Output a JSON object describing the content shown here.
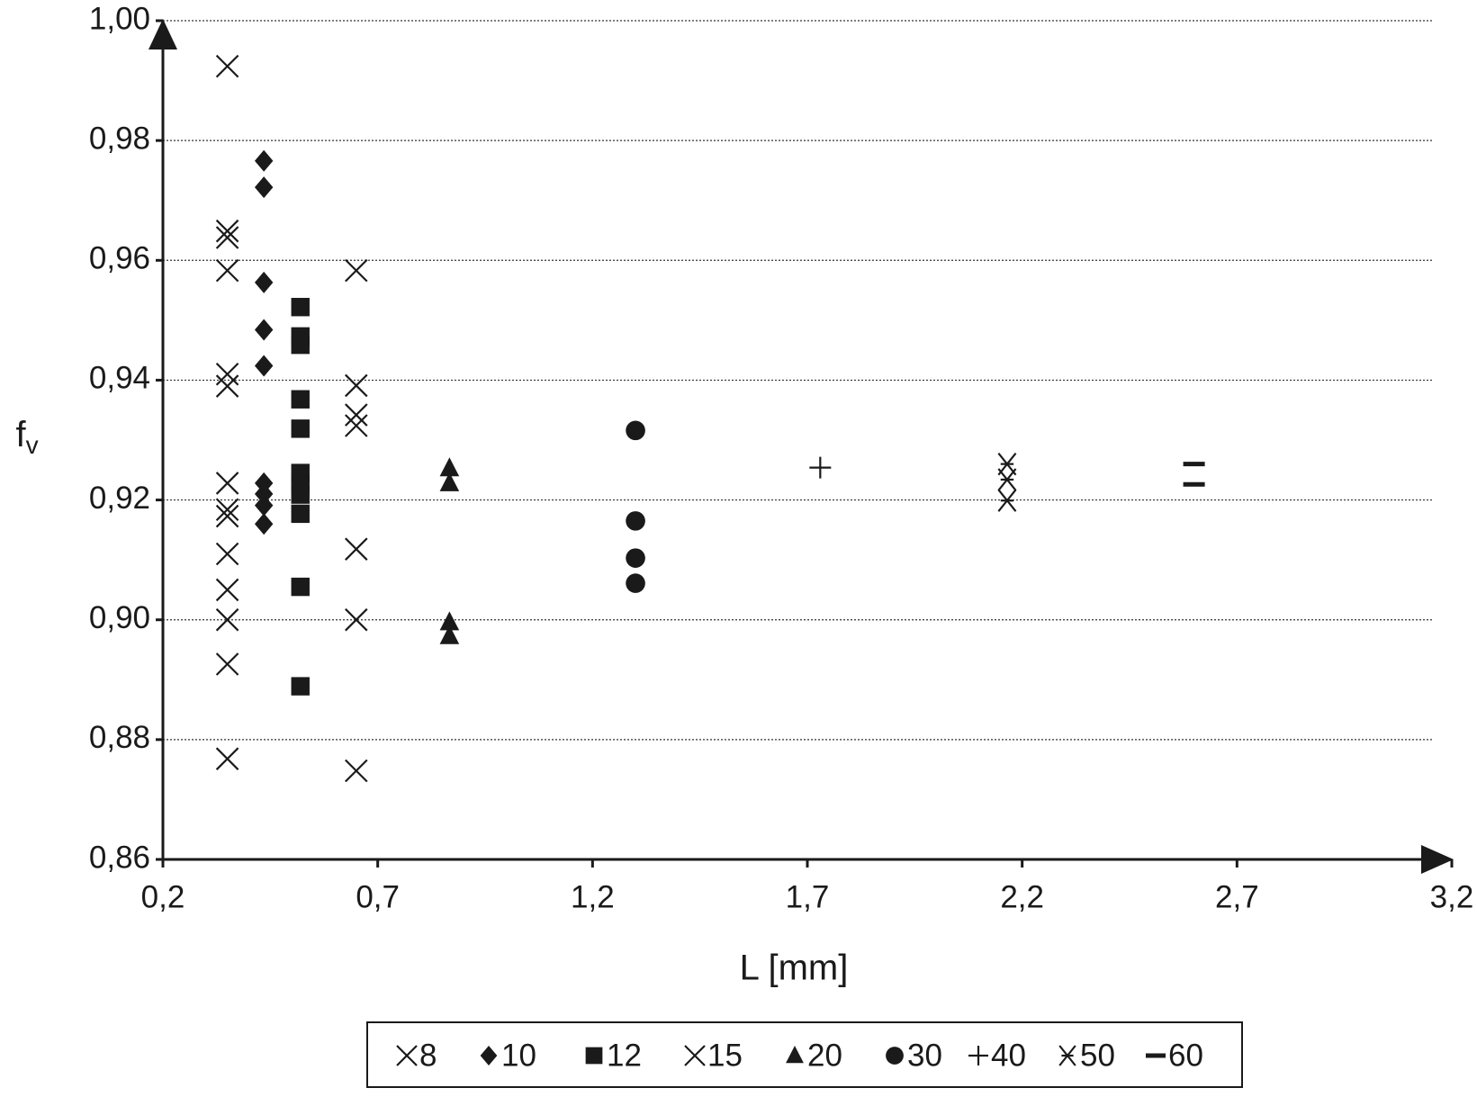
{
  "chart_data": {
    "type": "scatter",
    "x_label": "L [mm]",
    "y_label": "f",
    "y_label_subscript": "v",
    "xlim": [
      0.2,
      3.2
    ],
    "xticks": [
      {
        "value": 0.2,
        "label": "0,2"
      },
      {
        "value": 0.7,
        "label": "0,7"
      },
      {
        "value": 1.2,
        "label": "1,2"
      },
      {
        "value": 1.7,
        "label": "1,7"
      },
      {
        "value": 2.2,
        "label": "2,2"
      },
      {
        "value": 2.7,
        "label": "2,7"
      },
      {
        "value": 3.2,
        "label": "3,2"
      }
    ],
    "ylim": [
      0.86,
      1.0
    ],
    "yticks": [
      {
        "value": 0.86,
        "label": "0,86"
      },
      {
        "value": 0.88,
        "label": "0,88"
      },
      {
        "value": 0.9,
        "label": "0,90"
      },
      {
        "value": 0.92,
        "label": "0,92"
      },
      {
        "value": 0.94,
        "label": "0,94"
      },
      {
        "value": 0.96,
        "label": "0,96"
      },
      {
        "value": 0.98,
        "label": "0,98"
      },
      {
        "value": 1.0,
        "label": "1,00"
      }
    ],
    "grid": true,
    "legend": "bottom",
    "series": [
      {
        "name": "8",
        "color": "#1a1a1a",
        "marker": "x",
        "x": [
          0.35,
          0.35,
          0.35,
          0.35,
          0.35,
          0.35,
          0.35,
          0.35,
          0.35,
          0.35,
          0.35,
          0.35,
          0.35,
          0.35
        ],
        "values": [
          0.9924,
          0.9649,
          0.9638,
          0.9583,
          0.941,
          0.939,
          0.9228,
          0.9184,
          0.9173,
          0.911,
          0.905,
          0.9,
          0.8926,
          0.8768
        ]
      },
      {
        "name": "10",
        "color": "#1a1a1a",
        "marker": "diamond",
        "x": [
          0.435,
          0.435,
          0.435,
          0.435,
          0.435,
          0.435,
          0.435,
          0.435,
          0.435
        ],
        "values": [
          0.9766,
          0.9722,
          0.9563,
          0.9484,
          0.9424,
          0.9228,
          0.921,
          0.9191,
          0.916
        ]
      },
      {
        "name": "12",
        "color": "#1a1a1a",
        "marker": "square",
        "x": [
          0.52,
          0.52,
          0.52,
          0.52,
          0.52,
          0.52,
          0.52,
          0.52,
          0.52,
          0.52,
          0.52
        ],
        "values": [
          0.9522,
          0.9473,
          0.9459,
          0.9368,
          0.9319,
          0.9245,
          0.9229,
          0.9209,
          0.9177,
          0.9055,
          0.8889
        ]
      },
      {
        "name": "15",
        "color": "#1a1a1a",
        "marker": "x",
        "x": [
          0.65,
          0.65,
          0.65,
          0.65,
          0.65,
          0.65,
          0.65
        ],
        "values": [
          0.9583,
          0.9391,
          0.9342,
          0.9324,
          0.9118,
          0.9,
          0.8748
        ]
      },
      {
        "name": "20",
        "color": "#1a1a1a",
        "marker": "triangle",
        "x": [
          0.867,
          0.867,
          0.867,
          0.867
        ],
        "values": [
          0.9253,
          0.9228,
          0.8996,
          0.8973
        ]
      },
      {
        "name": "30",
        "color": "#1a1a1a",
        "marker": "circle",
        "x": [
          1.3,
          1.3,
          1.3,
          1.3
        ],
        "values": [
          0.9316,
          0.9165,
          0.9103,
          0.9061
        ]
      },
      {
        "name": "40",
        "color": "#1a1a1a",
        "marker": "plus",
        "x": [
          1.73
        ],
        "values": [
          0.9254
        ]
      },
      {
        "name": "50",
        "color": "#1a1a1a",
        "marker": "asterisk",
        "x": [
          2.165,
          2.165,
          2.165
        ],
        "values": [
          0.926,
          0.9234,
          0.9199
        ]
      },
      {
        "name": "60",
        "color": "#1a1a1a",
        "marker": "dash",
        "x": [
          2.6,
          2.6
        ],
        "values": [
          0.926,
          0.9226
        ]
      }
    ]
  }
}
